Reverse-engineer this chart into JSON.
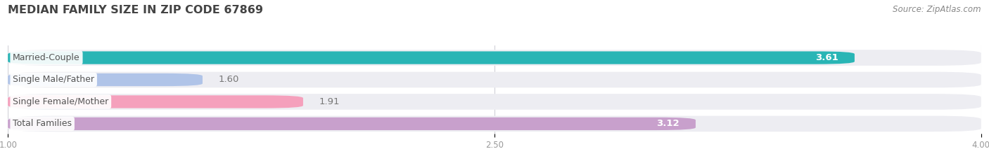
{
  "title": "MEDIAN FAMILY SIZE IN ZIP CODE 67869",
  "source": "Source: ZipAtlas.com",
  "categories": [
    "Married-Couple",
    "Single Male/Father",
    "Single Female/Mother",
    "Total Families"
  ],
  "values": [
    3.61,
    1.6,
    1.91,
    3.12
  ],
  "value_labels": [
    "3.61",
    "1.60",
    "1.91",
    "3.12"
  ],
  "bar_colors": [
    "#29b5b5",
    "#b0c4e8",
    "#f5a0bc",
    "#c8a0cc"
  ],
  "bar_bg_color": "#ededf2",
  "xlim_min": 1.0,
  "xlim_max": 4.0,
  "xticks": [
    1.0,
    2.5,
    4.0
  ],
  "xtick_labels": [
    "1.00",
    "2.50",
    "4.00"
  ],
  "label_inside_color": "#ffffff",
  "label_outside_color": "#777777",
  "label_inside_threshold": 2.8,
  "background_color": "#ffffff",
  "title_fontsize": 11.5,
  "source_fontsize": 8.5,
  "bar_label_fontsize": 9.5,
  "category_fontsize": 9,
  "xtick_fontsize": 8.5,
  "title_color": "#444444",
  "source_color": "#888888",
  "grid_color": "#d0d0d8",
  "category_text_color": "#555555"
}
